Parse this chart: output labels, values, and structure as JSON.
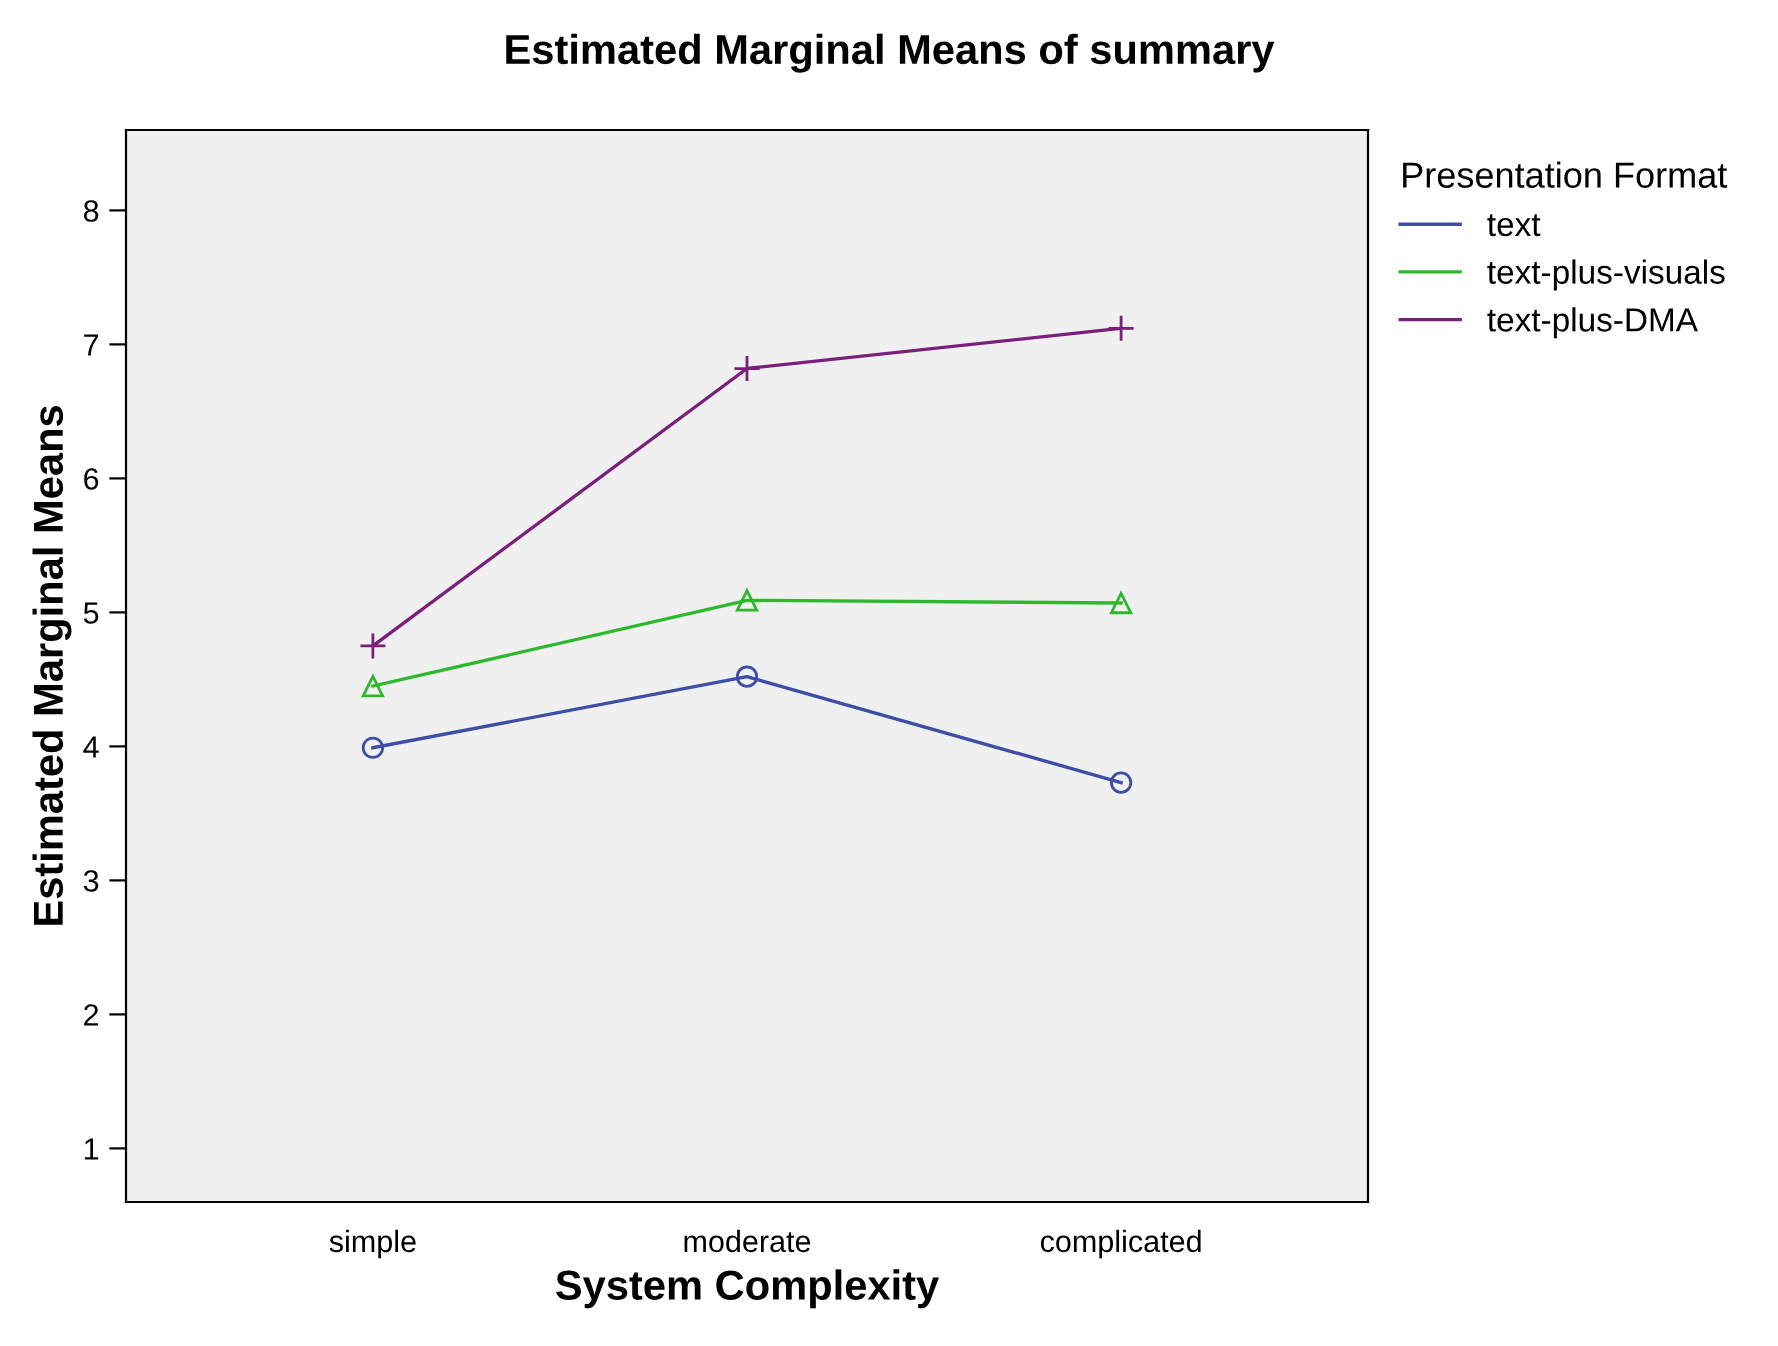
{
  "chart_data": {
    "type": "line",
    "title": "Estimated Marginal Means of summary",
    "xlabel": "System Complexity",
    "ylabel": "Estimated Marginal Means",
    "legend_title": "Presentation Format",
    "categories": [
      "simple",
      "moderate",
      "complicated"
    ],
    "series": [
      {
        "name": "text",
        "color": "#3c4ea6",
        "marker": "circle",
        "values": [
          3.99,
          4.52,
          3.73
        ]
      },
      {
        "name": "text-plus-visuals",
        "color": "#2eb82e",
        "marker": "triangle",
        "values": [
          4.45,
          5.09,
          5.07
        ]
      },
      {
        "name": "text-plus-DMA",
        "color": "#7a1f7a",
        "marker": "cross",
        "values": [
          4.75,
          6.82,
          7.12
        ]
      }
    ],
    "ylim": [
      0.6,
      8.6
    ],
    "yticks": [
      1,
      2,
      3,
      4,
      5,
      6,
      7,
      8
    ],
    "grid": false,
    "legend": "top right"
  }
}
